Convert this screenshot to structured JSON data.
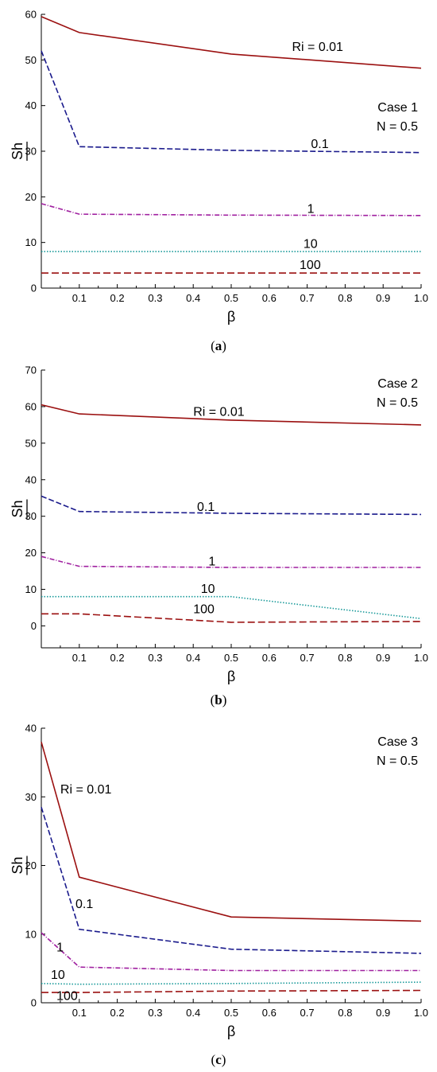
{
  "chart_data": [
    {
      "type": "line",
      "caption": "(a)",
      "caption_letter": "a",
      "xlabel": "β",
      "ylabel": "Sh",
      "xlim": [
        0,
        1
      ],
      "ylim": [
        0,
        60
      ],
      "x_ticks": [
        "0.1",
        "0.2",
        "0.3",
        "0.4",
        "0.5",
        "0.6",
        "0.7",
        "0.8",
        "0.9",
        "1.0"
      ],
      "y_ticks": [
        "0",
        "10",
        "20",
        "30",
        "40",
        "50",
        "60"
      ],
      "legend_title": "Case 1",
      "legend_sub": "N = 0.5",
      "series": [
        {
          "name": "Ri = 0.01",
          "x": [
            0,
            0.1,
            0.5,
            1.0
          ],
          "y": [
            59.5,
            56.0,
            51.3,
            48.2
          ],
          "color": "#9b1010",
          "dash": ""
        },
        {
          "name": "0.1",
          "x": [
            0,
            0.1,
            0.5,
            1.0
          ],
          "y": [
            52.0,
            31.0,
            30.2,
            29.7
          ],
          "color": "#1a1a8c",
          "dash": "7 3"
        },
        {
          "name": "1",
          "x": [
            0,
            0.1,
            0.5,
            1.0
          ],
          "y": [
            18.5,
            16.2,
            16.0,
            15.9
          ],
          "color": "#a020a0",
          "dash": "6 2 1 2"
        },
        {
          "name": "10",
          "x": [
            0,
            0.1,
            0.5,
            1.0
          ],
          "y": [
            8.0,
            8.0,
            8.0,
            8.0
          ],
          "color": "#1a9a9a",
          "dash": "1.5 2"
        },
        {
          "name": "100",
          "x": [
            0,
            0.1,
            0.5,
            1.0
          ],
          "y": [
            3.3,
            3.3,
            3.3,
            3.3
          ],
          "color": "#9b1010",
          "dash": "9 4"
        }
      ],
      "labels": [
        {
          "text": "Ri = 0.01",
          "x": 0.66,
          "y": 52.0
        },
        {
          "text": "0.1",
          "x": 0.71,
          "y": 30.7
        },
        {
          "text": "1",
          "x": 0.7,
          "y": 16.5
        },
        {
          "text": "10",
          "x": 0.69,
          "y": 8.8
        },
        {
          "text": "100",
          "x": 0.68,
          "y": 4.2
        }
      ]
    },
    {
      "type": "line",
      "caption": "(b)",
      "caption_letter": "b",
      "xlabel": "β",
      "ylabel": "Sh",
      "xlim": [
        0,
        1
      ],
      "ylim": [
        -6,
        70
      ],
      "x_ticks": [
        "0.1",
        "0.2",
        "0.3",
        "0.4",
        "0.5",
        "0.6",
        "0.7",
        "0.8",
        "0.9",
        "1.0"
      ],
      "y_ticks": [
        "0",
        "10",
        "20",
        "30",
        "40",
        "50",
        "60",
        "70"
      ],
      "legend_title": "Case 2",
      "legend_sub": "N = 0.5",
      "series": [
        {
          "name": "Ri = 0.01",
          "x": [
            0,
            0.1,
            0.5,
            1.0
          ],
          "y": [
            60.5,
            58.0,
            56.3,
            55.0
          ],
          "color": "#9b1010",
          "dash": ""
        },
        {
          "name": "0.1",
          "x": [
            0,
            0.1,
            0.5,
            1.0
          ],
          "y": [
            35.5,
            31.3,
            30.8,
            30.5
          ],
          "color": "#1a1a8c",
          "dash": "7 3"
        },
        {
          "name": "1",
          "x": [
            0,
            0.1,
            0.5,
            1.0
          ],
          "y": [
            19.0,
            16.3,
            16.0,
            16.0
          ],
          "color": "#a020a0",
          "dash": "6 2 1 2"
        },
        {
          "name": "10",
          "x": [
            0,
            0.1,
            0.5,
            1.0
          ],
          "y": [
            8.0,
            8.0,
            8.0,
            2.0
          ],
          "color": "#1a9a9a",
          "dash": "1.5 2"
        },
        {
          "name": "100",
          "x": [
            0,
            0.1,
            0.5,
            1.0
          ],
          "y": [
            3.3,
            3.3,
            1.0,
            1.2
          ],
          "color": "#9b1010",
          "dash": "9 4"
        }
      ],
      "labels": [
        {
          "text": "Ri = 0.01",
          "x": 0.4,
          "y": 57.5
        },
        {
          "text": "0.1",
          "x": 0.41,
          "y": 31.5
        },
        {
          "text": "1",
          "x": 0.44,
          "y": 16.5
        },
        {
          "text": "10",
          "x": 0.42,
          "y": 9.0
        },
        {
          "text": "100",
          "x": 0.4,
          "y": 3.5
        }
      ]
    },
    {
      "type": "line",
      "caption": "(c)",
      "caption_letter": "c",
      "xlabel": "β",
      "ylabel": "Sh",
      "xlim": [
        0,
        1
      ],
      "ylim": [
        0,
        40
      ],
      "x_ticks": [
        "0.1",
        "0.2",
        "0.3",
        "0.4",
        "0.5",
        "0.6",
        "0.7",
        "0.8",
        "0.9",
        "1.0"
      ],
      "y_ticks": [
        "0",
        "10",
        "20",
        "30",
        "40"
      ],
      "legend_title": "Case 3",
      "legend_sub": "N = 0.5",
      "series": [
        {
          "name": "Ri = 0.01",
          "x": [
            0,
            0.1,
            0.5,
            1.0
          ],
          "y": [
            38.0,
            18.3,
            12.5,
            11.9
          ],
          "color": "#9b1010",
          "dash": ""
        },
        {
          "name": "0.1",
          "x": [
            0,
            0.1,
            0.5,
            1.0
          ],
          "y": [
            28.5,
            10.7,
            7.8,
            7.2
          ],
          "color": "#1a1a8c",
          "dash": "7 3"
        },
        {
          "name": "1",
          "x": [
            0,
            0.1,
            0.5,
            1.0
          ],
          "y": [
            10.2,
            5.2,
            4.7,
            4.7
          ],
          "color": "#a020a0",
          "dash": "6 2 1 2"
        },
        {
          "name": "10",
          "x": [
            0,
            0.1,
            0.5,
            1.0
          ],
          "y": [
            2.8,
            2.7,
            2.8,
            3.0
          ],
          "color": "#1a9a9a",
          "dash": "1.5 2"
        },
        {
          "name": "100",
          "x": [
            0,
            0.1,
            0.5,
            1.0
          ],
          "y": [
            1.5,
            1.5,
            1.7,
            1.8
          ],
          "color": "#9b1010",
          "dash": "9 4"
        }
      ],
      "labels": [
        {
          "text": "Ri = 0.01",
          "x": 0.05,
          "y": 30.5
        },
        {
          "text": "0.1",
          "x": 0.09,
          "y": 13.8
        },
        {
          "text": "1",
          "x": 0.04,
          "y": 7.5
        },
        {
          "text": "10",
          "x": 0.025,
          "y": 3.5
        },
        {
          "text": "100",
          "x": 0.04,
          "y": 0.4
        }
      ]
    }
  ]
}
